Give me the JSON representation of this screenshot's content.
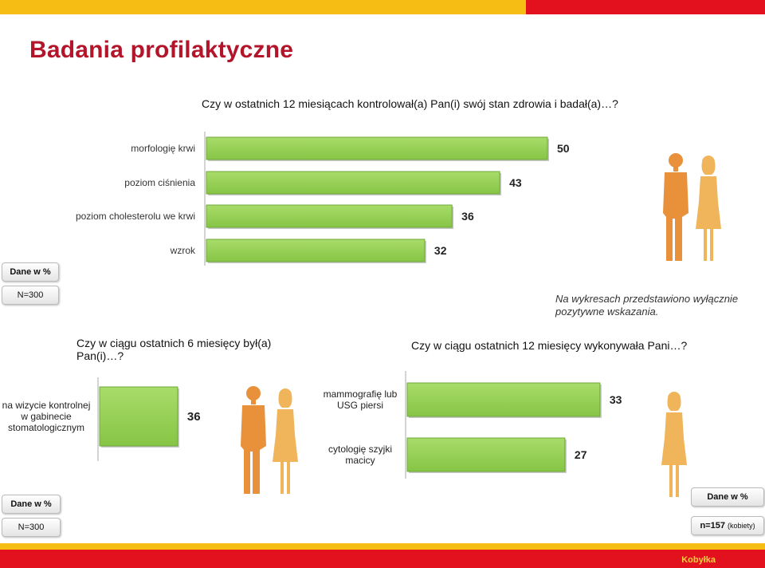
{
  "header": {
    "title": "Badania profilaktyczne"
  },
  "colors": {
    "bar": "#92d050",
    "bar_border": "#6fa83a",
    "male_figure": "#e8913a",
    "female_figure": "#f0b45a",
    "top_yellow": "#f6bd14",
    "top_red": "#e3101e"
  },
  "note": "Na wykresach przedstawiono wyłącznie pozytywne wskazania.",
  "badges": {
    "unit_top": "Dane w %",
    "n_top": "N=300",
    "unit_left": "Dane w %",
    "n_left": "N=300",
    "unit_right": "Dane w %",
    "n_right_main": "n=157",
    "n_right_sub": "(kobiety)"
  },
  "footer": {
    "brand": "Kobyłka"
  },
  "icons": [
    "male-figure-icon",
    "female-figure-icon"
  ],
  "chart_data": [
    {
      "type": "bar",
      "orientation": "horizontal",
      "title": "Czy w ostatnich 12 miesiącach kontrolował(a) Pan(i) swój stan zdrowia i badał(a)…?",
      "categories": [
        "morfologię krwi",
        "poziom ciśnienia",
        "poziom cholesterolu we krwi",
        "wzrok"
      ],
      "values": [
        50,
        43,
        36,
        32
      ],
      "unit": "%",
      "xlim": [
        0,
        50
      ],
      "grid": false,
      "legend": "none"
    },
    {
      "type": "bar",
      "orientation": "horizontal",
      "title": "Czy w ciągu ostatnich 6 miesięcy był(a) Pan(i)…?",
      "categories": [
        "na wizycie kontrolnej w gabinecie stomatologicznym"
      ],
      "values": [
        36
      ],
      "unit": "%",
      "grid": false,
      "legend": "none"
    },
    {
      "type": "bar",
      "orientation": "horizontal",
      "title": "Czy w ciągu ostatnich 12 miesięcy wykonywała Pani…?",
      "categories": [
        "mammografię lub USG piersi",
        "cytologię szyjki macicy"
      ],
      "values": [
        33,
        27
      ],
      "unit": "%",
      "xlim": [
        0,
        33
      ],
      "grid": false,
      "legend": "none"
    }
  ]
}
